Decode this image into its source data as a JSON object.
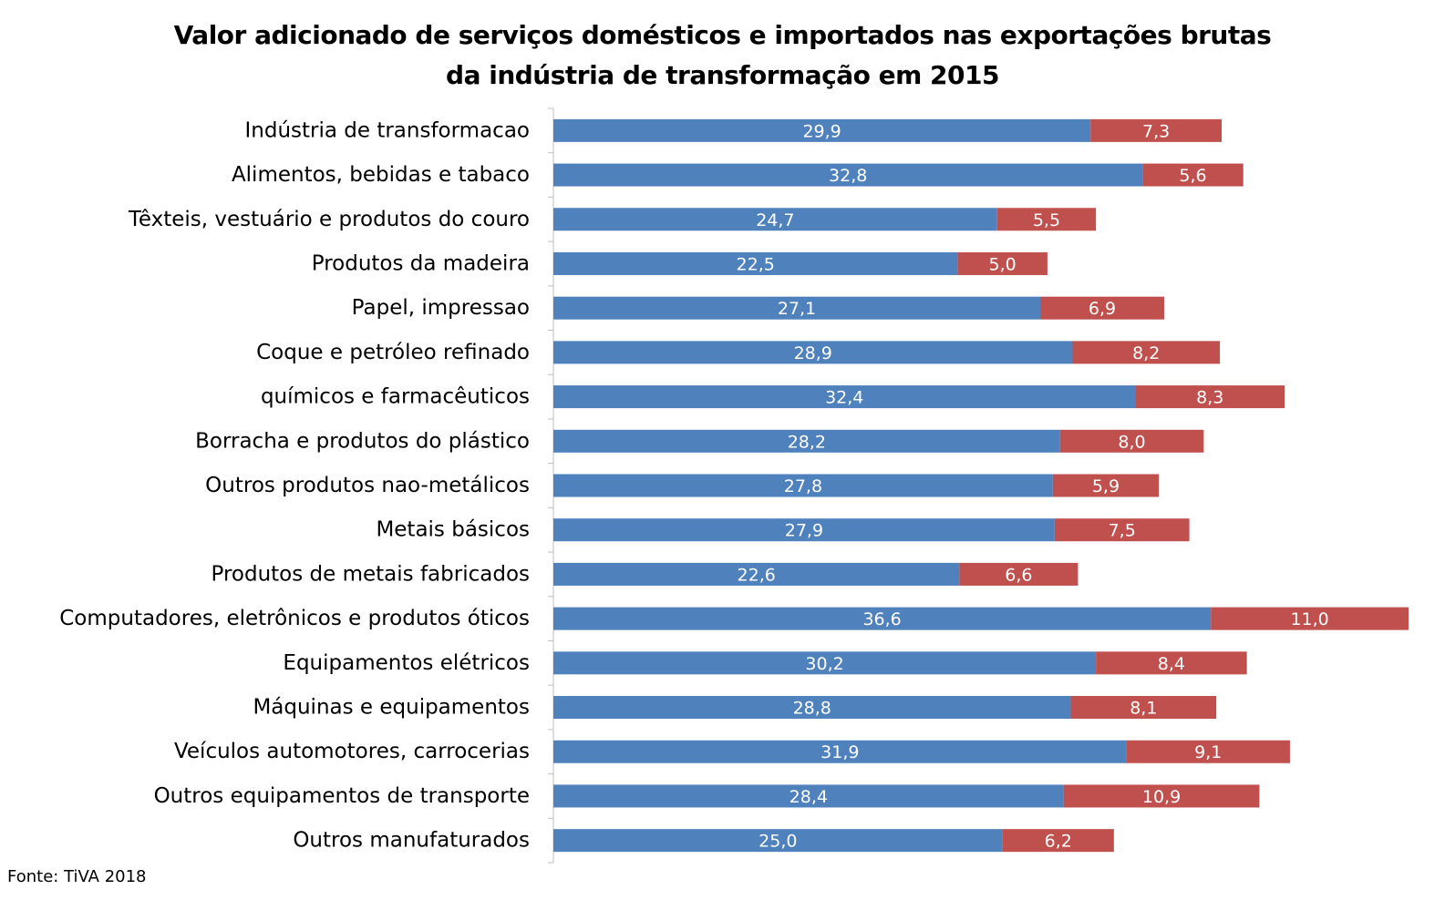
{
  "title_line1": "Valor adicionado de serviços domésticos e importados nas exportações brutas",
  "title_line2": "da indústria de transformação em 2015",
  "source": "Fonte: TiVA 2018",
  "chart_data": {
    "type": "bar",
    "orientation": "horizontal",
    "stacked": true,
    "title": "Valor adicionado de serviços domésticos e importados nas exportações brutas da indústria de transformação em 2015",
    "categories": [
      "Indústria de transformacao",
      "Alimentos, bebidas e tabaco",
      "Têxteis, vestuário e produtos do couro",
      "Produtos da madeira",
      "Papel, impressao",
      "Coque e petróleo refinado",
      "químicos e farmacêuticos",
      "Borracha e produtos do plástico",
      "Outros produtos nao-metálicos",
      "Metais básicos",
      "Produtos de metais fabricados",
      "Computadores, eletrônicos e produtos óticos",
      "Equipamentos elétricos",
      "Máquinas e equipamentos",
      "Veículos automotores, carrocerias",
      "Outros equipamentos de transporte",
      "Outros  manufaturados"
    ],
    "series": [
      {
        "color": "#4f81bd",
        "values": [
          29.9,
          32.8,
          24.7,
          22.5,
          27.1,
          28.9,
          32.4,
          28.2,
          27.8,
          27.9,
          22.6,
          36.6,
          30.2,
          28.8,
          31.9,
          28.4,
          25.0
        ],
        "labels": [
          "29,9",
          "32,8",
          "24,7",
          "22,5",
          "27,1",
          "28,9",
          "32,4",
          "28,2",
          "27,8",
          "27,9",
          "22,6",
          "36,6",
          "30,2",
          "28,8",
          "31,9",
          "28,4",
          "25,0"
        ]
      },
      {
        "color": "#c0504d",
        "values": [
          7.3,
          5.6,
          5.5,
          5.0,
          6.9,
          8.2,
          8.3,
          8.0,
          5.9,
          7.5,
          6.6,
          11.0,
          8.4,
          8.1,
          9.1,
          10.9,
          6.2
        ],
        "labels": [
          "7,3",
          "5,6",
          "5,5",
          "5,0",
          "6,9",
          "8,2",
          "8,3",
          "8,0",
          "5,9",
          "7,5",
          "6,6",
          "11,0",
          "8,4",
          "8,1",
          "9,1",
          "10,9",
          "6,2"
        ]
      }
    ],
    "xlim": [
      0,
      47.6
    ],
    "grid": false,
    "legend": "none"
  }
}
